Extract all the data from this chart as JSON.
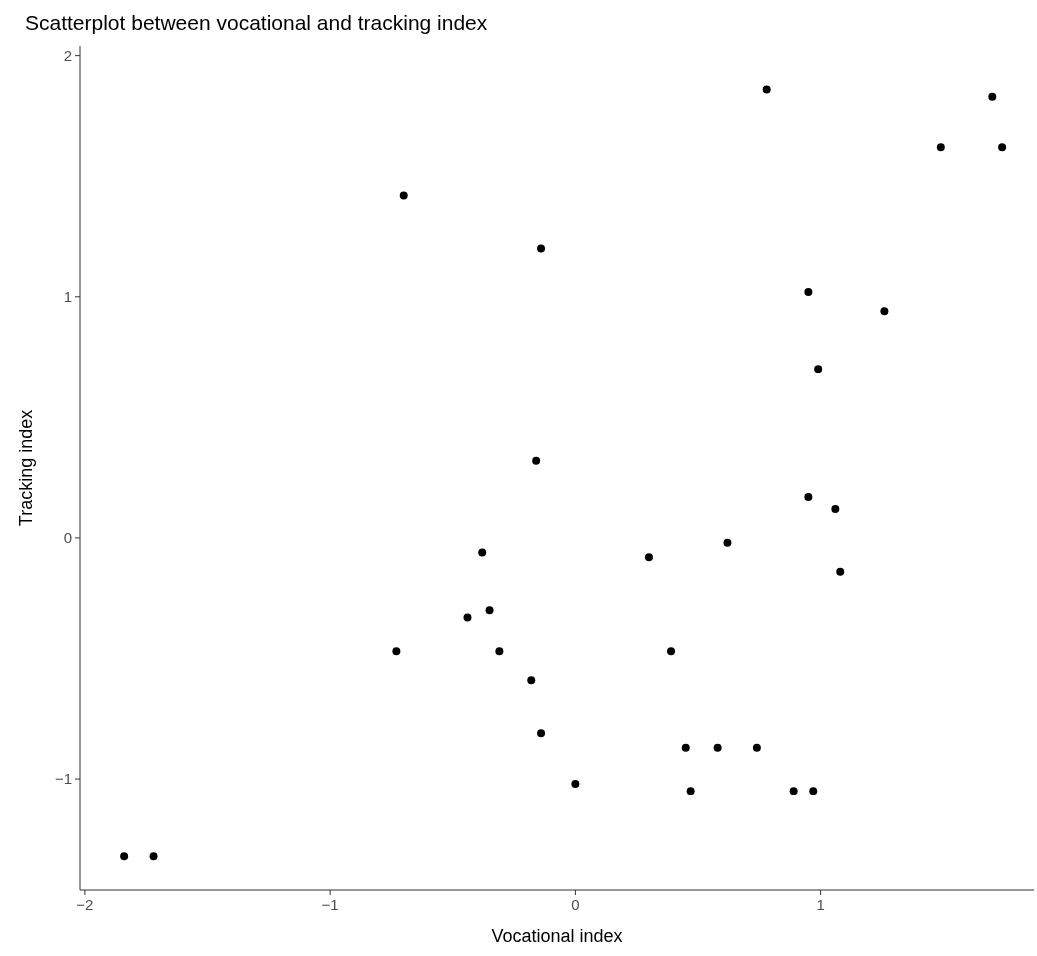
{
  "chart_data": {
    "type": "scatter",
    "title": "Scatterplot between vocational and tracking index",
    "xlabel": "Vocational index",
    "ylabel": "Tracking index",
    "x": [
      0.78,
      1.7,
      1.49,
      1.74,
      -0.7,
      -0.14,
      0.95,
      1.26,
      0.99,
      -0.16,
      0.95,
      1.06,
      -0.38,
      0.3,
      0.62,
      1.08,
      -0.35,
      -0.44,
      -0.73,
      -0.31,
      0.39,
      -0.18,
      -0.14,
      0.45,
      0.58,
      0.74,
      0.0,
      0.47,
      0.89,
      0.97,
      -1.84,
      -1.72
    ],
    "values": [
      1.86,
      1.83,
      1.62,
      1.62,
      1.42,
      1.2,
      1.02,
      0.94,
      0.7,
      0.32,
      0.17,
      0.12,
      -0.06,
      -0.08,
      -0.02,
      -0.14,
      -0.3,
      -0.33,
      -0.47,
      -0.47,
      -0.47,
      -0.59,
      -0.81,
      -0.87,
      -0.87,
      -0.87,
      -1.02,
      -1.05,
      -1.05,
      -1.05,
      -1.32,
      -1.32
    ],
    "color": "#000000",
    "marker": "circle",
    "grid": false,
    "xlim": [
      -2.02,
      1.87
    ],
    "ylim": [
      -1.46,
      2.04
    ],
    "xticks": [
      {
        "value": -2,
        "label": "−2"
      },
      {
        "value": -1,
        "label": "−1"
      },
      0,
      1
    ],
    "yticks": [
      {
        "value": -1,
        "label": "−1"
      },
      0,
      1,
      2
    ]
  }
}
